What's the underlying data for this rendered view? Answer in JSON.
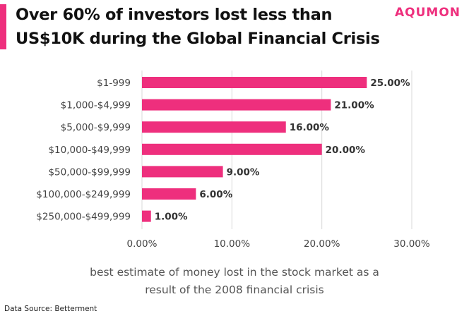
{
  "header": {
    "title_line1": "Over 60% of investors lost less than",
    "title_line2": "US$10K during the Global Financial Crisis",
    "brand": "AQUMON"
  },
  "colors": {
    "accent": "#EE2F7D",
    "bar": "#EE2F7D",
    "grid": "#D9D9D9"
  },
  "chart_data": {
    "type": "bar",
    "orientation": "horizontal",
    "categories": [
      "$1-999",
      "$1,000-$4,999",
      "$5,000-$9,999",
      "$10,000-$49,999",
      "$50,000-$99,999",
      "$100,000-$249,999",
      "$250,000-$499,999"
    ],
    "values": [
      25,
      21,
      16,
      20,
      9,
      6,
      1
    ],
    "value_labels": [
      "25.00%",
      "21.00%",
      "16.00%",
      "20.00%",
      "9.00%",
      "6.00%",
      "1.00%"
    ],
    "xlim": [
      0,
      30
    ],
    "x_ticks": [
      0,
      10,
      20,
      30
    ],
    "x_tick_labels": [
      "0.00%",
      "10.00%",
      "20.00%",
      "30.00%"
    ],
    "grid": true,
    "xlabel": "best estimate of money lost in the stock market as a result of the 2008 financial crisis",
    "ylabel": ""
  },
  "footer": {
    "caption_line1": "best estimate of money lost in the stock market as a",
    "caption_line2": "result of the 2008 financial crisis",
    "source": "Data Source: Betterment"
  }
}
